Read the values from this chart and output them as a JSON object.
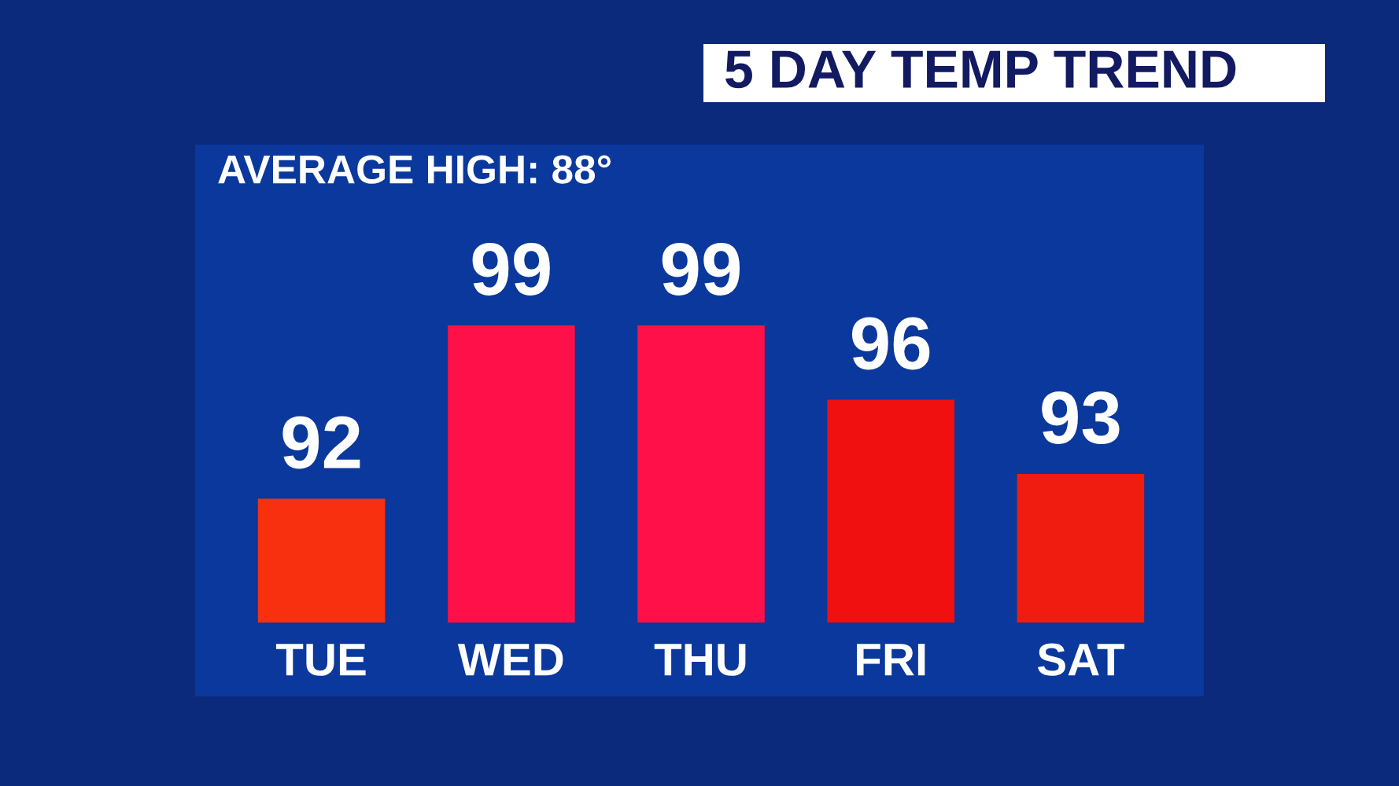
{
  "chart_data": {
    "type": "bar",
    "title": "5 DAY TEMP TREND",
    "annotations": [
      "AVERAGE HIGH: 88°"
    ],
    "categories": [
      "TUE",
      "WED",
      "THU",
      "FRI",
      "SAT"
    ],
    "values": [
      92,
      99,
      99,
      96,
      93
    ],
    "colors": [
      "#f83010",
      "#ff1048",
      "#ff1048",
      "#f01010",
      "#f01c10"
    ],
    "ylim": [
      87,
      99
    ],
    "data_labels": true,
    "tick_labels": "x",
    "grid": false,
    "legend": false
  }
}
